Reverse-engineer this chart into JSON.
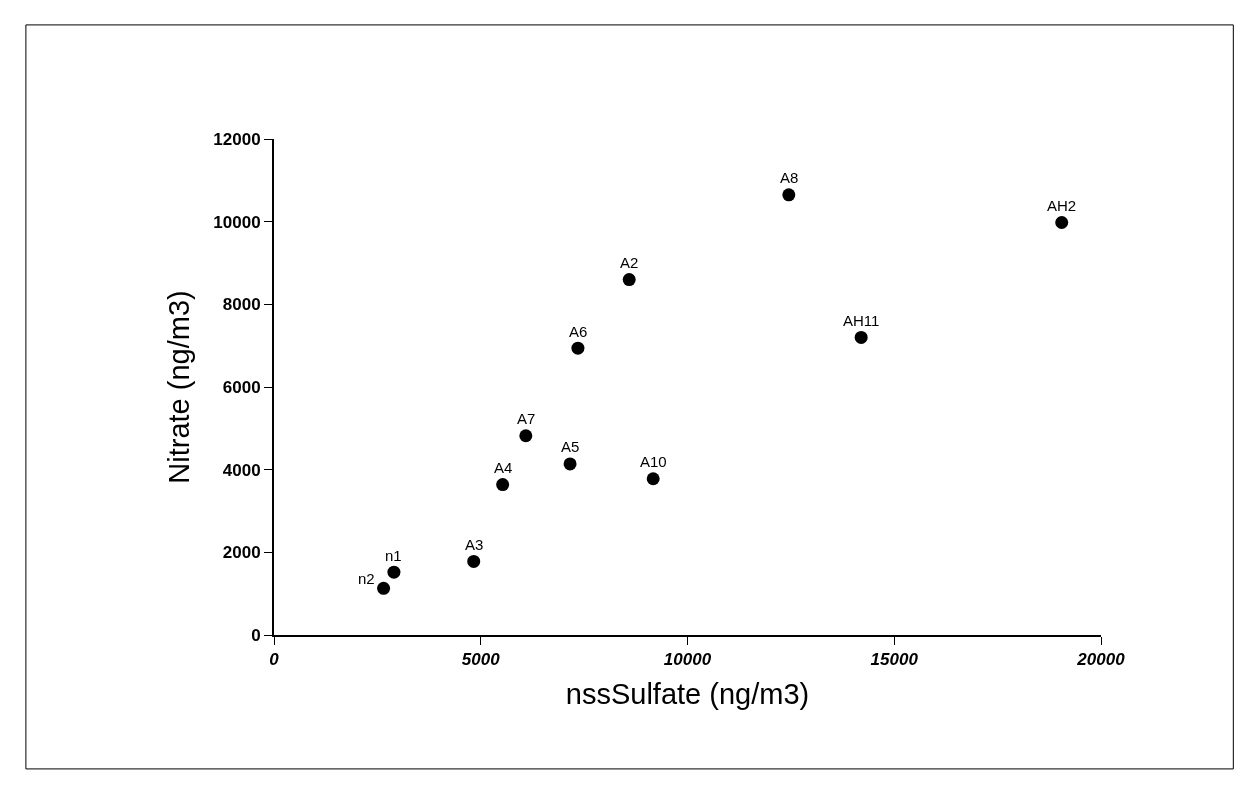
{
  "chart_data": {
    "type": "scatter",
    "xlabel": "nssSulfate (ng/m3)",
    "ylabel": "Nitrate (ng/m3)",
    "x": [
      2650,
      2900,
      4830,
      5530,
      6090,
      7160,
      9170,
      7350,
      8590,
      12450,
      14200,
      19050
    ],
    "values": [
      1130,
      1520,
      1780,
      3640,
      4820,
      4140,
      3780,
      6940,
      8600,
      10650,
      7200,
      9980
    ],
    "color": "#000000",
    "marker": "circle",
    "annotations": [
      {
        "text": "n2",
        "x": 2650,
        "y": 1130
      },
      {
        "text": "n1",
        "x": 2900,
        "y": 1520
      },
      {
        "text": "A3",
        "x": 4830,
        "y": 1780
      },
      {
        "text": "A4",
        "x": 5530,
        "y": 3640
      },
      {
        "text": "A7",
        "x": 6090,
        "y": 4820
      },
      {
        "text": "A5",
        "x": 7160,
        "y": 4140
      },
      {
        "text": "A10",
        "x": 9170,
        "y": 3780
      },
      {
        "text": "A6",
        "x": 7350,
        "y": 6940
      },
      {
        "text": "A2",
        "x": 8590,
        "y": 8600
      },
      {
        "text": "A8",
        "x": 12450,
        "y": 10650
      },
      {
        "text": "AH11",
        "x": 14200,
        "y": 7200
      },
      {
        "text": "AH2",
        "x": 19050,
        "y": 9980
      }
    ],
    "xlim": [
      0,
      20000
    ],
    "xticks": [
      0,
      5000,
      10000,
      15000,
      20000
    ],
    "ylim": [
      0,
      12000
    ],
    "yticks": [
      0,
      2000,
      4000,
      6000,
      8000,
      10000,
      12000
    ]
  }
}
